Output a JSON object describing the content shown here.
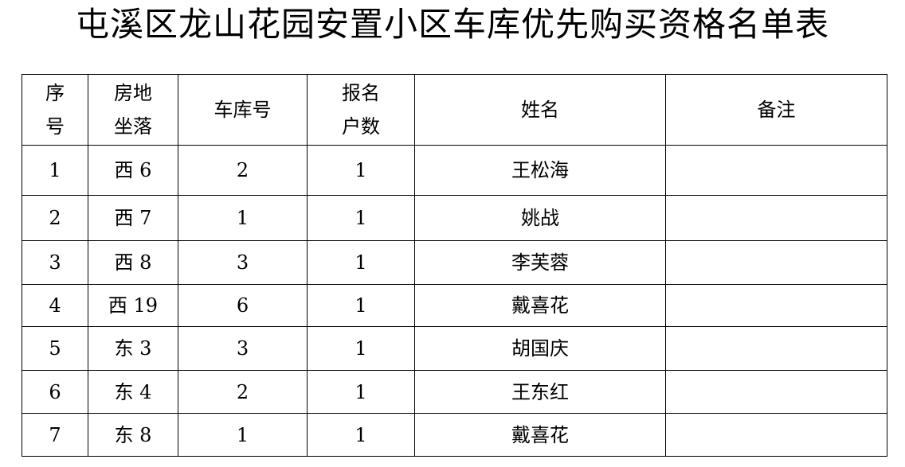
{
  "title": "屯溪区龙山花园安置小区车库优先购买资格名单表",
  "table": {
    "headers": [
      "序\n号",
      "房地\n坐落",
      "车库号",
      "报名\n户数",
      "姓名",
      "备注"
    ],
    "rows": [
      [
        "1",
        "西 6",
        "2",
        "1",
        "王松海",
        ""
      ],
      [
        "2",
        "西 7",
        "1",
        "1",
        "姚战",
        ""
      ],
      [
        "3",
        "西 8",
        "3",
        "1",
        "李芙蓉",
        ""
      ],
      [
        "4",
        "西 19",
        "6",
        "1",
        "戴喜花",
        ""
      ],
      [
        "5",
        "东 3",
        "3",
        "1",
        "胡国庆",
        ""
      ],
      [
        "6",
        "东 4",
        "2",
        "1",
        "王东红",
        ""
      ],
      [
        "7",
        "东 8",
        "1",
        "1",
        "戴喜花",
        ""
      ]
    ]
  }
}
